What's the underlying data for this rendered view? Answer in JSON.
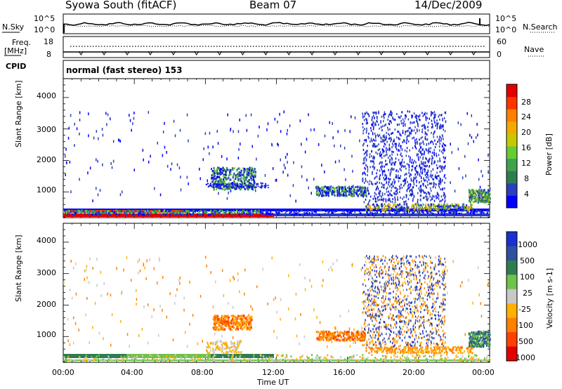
{
  "header": {
    "station": "Syowa South (fitACF)",
    "beam": "Beam 07",
    "date": "14/Dec/2009"
  },
  "top_panels": {
    "nsky_label": "N.Sky",
    "nsky_ticks": [
      "10^5",
      "10^0"
    ],
    "nsearch_ticks": [
      "10^5",
      "10^0"
    ],
    "nsearch_label": "N.Search",
    "freq_label": "Freq.",
    "freq_unit": "[MHz]",
    "freq_ticks": [
      "18",
      "8"
    ],
    "nave_ticks": [
      "60",
      "0"
    ],
    "nave_label": "Nave",
    "cpid_label": "CPID",
    "cpid_text": "normal (fast stereo) 153"
  },
  "chart_data": [
    {
      "type": "heatmap",
      "quantity": "Power",
      "ylabel": "Slant Range [km]",
      "xlabel": "",
      "x_ticks": [
        "00:00",
        "04:00",
        "08:00",
        "12:00",
        "16:00",
        "20:00",
        "00:00"
      ],
      "xlim_hours": [
        0,
        24
      ],
      "y_ticks": [
        1000,
        2000,
        3000,
        4000
      ],
      "ylim_km": [
        180,
        4600
      ],
      "colorbar": {
        "label": "Power [dB]",
        "ticks": [
          "28",
          "24",
          "20",
          "16",
          "12",
          "8",
          "4"
        ],
        "colors": [
          "#0000ff",
          "#2a3fbf",
          "#2e7d52",
          "#3fa34d",
          "#66cc33",
          "#c8c800",
          "#f2a900",
          "#ff7f00",
          "#ff3300",
          "#e00000"
        ]
      }
    },
    {
      "type": "heatmap",
      "quantity": "Velocity",
      "ylabel": "Slant Range [km]",
      "xlabel": "Time UT",
      "x_ticks": [
        "00:00",
        "04:00",
        "08:00",
        "12:00",
        "16:00",
        "20:00",
        "00:00"
      ],
      "xlim_hours": [
        0,
        24
      ],
      "y_ticks": [
        1000,
        2000,
        3000,
        4000
      ],
      "ylim_km": [
        180,
        4600
      ],
      "colorbar": {
        "label": "Velocity [m s-1]",
        "ticks": [
          "1000",
          "500",
          "100",
          "25",
          "-25",
          "-100",
          "-500",
          "-1000"
        ],
        "colors": [
          "#1a2fd0",
          "#2f4fa0",
          "#2e7d52",
          "#6fc24a",
          "#c8c8c8",
          "#ffb000",
          "#ff7f00",
          "#ff4000",
          "#e00000"
        ]
      }
    }
  ],
  "colors": {
    "scatter_blue": "#2a3fbf",
    "ground_red": "#e00000",
    "ground_green": "#3fa34d"
  }
}
